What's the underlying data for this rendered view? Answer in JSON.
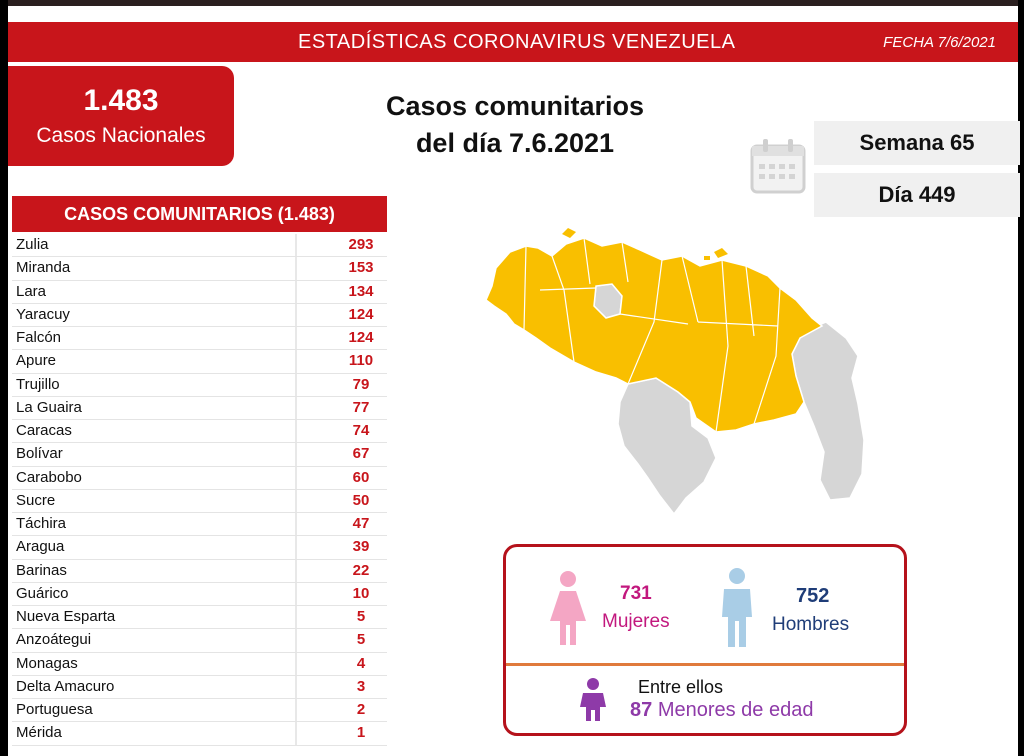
{
  "header": {
    "title": "ESTADÍSTICAS CORONAVIRUS VENEZUELA",
    "date": "FECHA 7/6/2021"
  },
  "national": {
    "total": "1.483",
    "label": "Casos Nacionales"
  },
  "heading": {
    "line1": "Casos comunitarios",
    "line2": "del día 7.6.2021"
  },
  "counters": {
    "week": "Semana 65",
    "day": "Día 449"
  },
  "table": {
    "title": "CASOS COMUNITARIOS (1.483)",
    "rows": [
      {
        "state": "Zulia",
        "cases": "293"
      },
      {
        "state": "Miranda",
        "cases": "153"
      },
      {
        "state": "Lara",
        "cases": "134"
      },
      {
        "state": "Yaracuy",
        "cases": "124"
      },
      {
        "state": "Falcón",
        "cases": "124"
      },
      {
        "state": "Apure",
        "cases": "110"
      },
      {
        "state": "Trujillo",
        "cases": "79"
      },
      {
        "state": "La Guaira",
        "cases": "77"
      },
      {
        "state": "Caracas",
        "cases": "74"
      },
      {
        "state": "Bolívar",
        "cases": "67"
      },
      {
        "state": "Carabobo",
        "cases": "60"
      },
      {
        "state": "Sucre",
        "cases": "50"
      },
      {
        "state": "Táchira",
        "cases": "47"
      },
      {
        "state": "Aragua",
        "cases": "39"
      },
      {
        "state": "Barinas",
        "cases": "22"
      },
      {
        "state": "Guárico",
        "cases": "10"
      },
      {
        "state": "Nueva Esparta",
        "cases": "5"
      },
      {
        "state": "Anzoátegui",
        "cases": "5"
      },
      {
        "state": "Monagas",
        "cases": "4"
      },
      {
        "state": "Delta Amacuro",
        "cases": "3"
      },
      {
        "state": "Portuguesa",
        "cases": "2"
      },
      {
        "state": "Mérida",
        "cases": "1"
      }
    ]
  },
  "gender": {
    "female_count": "731",
    "female_label": "Mujeres",
    "male_count": "752",
    "male_label": "Hombres",
    "minors_intro": "Entre ellos",
    "minors_count": "87",
    "minors_label": "Menores de edad"
  },
  "colors": {
    "brand_red": "#c8151b",
    "map_affected": "#f9bf00",
    "map_unaffected": "#d6d6d6",
    "female": "#f4a6c4",
    "male": "#a9cde6",
    "minor": "#8e3aa8"
  },
  "icons": {
    "calendar": "calendar-icon",
    "female": "female-icon",
    "male": "male-icon",
    "child": "child-icon"
  }
}
